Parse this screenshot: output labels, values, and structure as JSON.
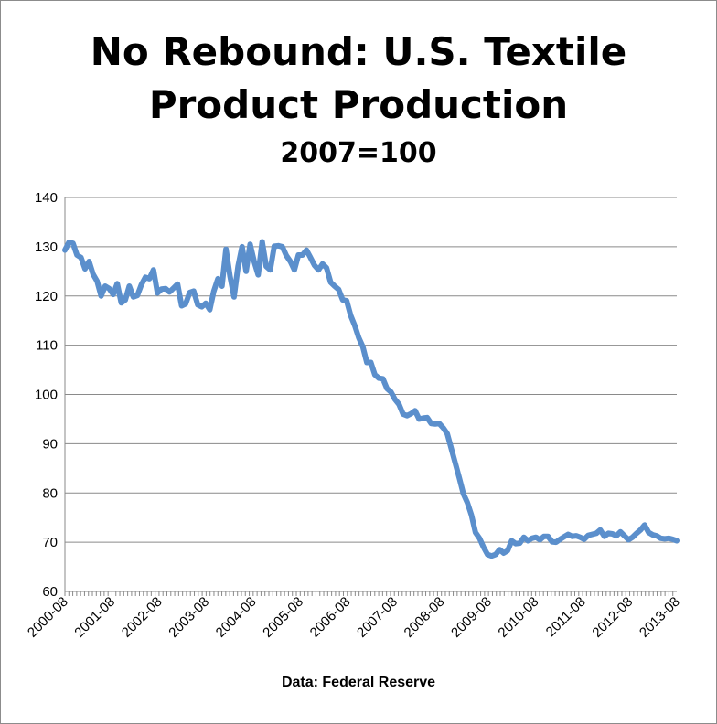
{
  "chart_data": {
    "type": "line",
    "title": "No Rebound: U.S. Textile Product Production",
    "title_lines": [
      "No Rebound: U.S. Textile",
      "Product Production"
    ],
    "subtitle": "2007=100",
    "source": "Data: Federal Reserve",
    "xlabel": "",
    "ylabel": "",
    "ylim": [
      60,
      140
    ],
    "yticks": [
      60,
      70,
      80,
      90,
      100,
      110,
      120,
      130,
      140
    ],
    "xticks": [
      "2000-08",
      "2001-08",
      "2002-08",
      "2003-08",
      "2004-08",
      "2005-08",
      "2006-08",
      "2007-08",
      "2008-08",
      "2009-08",
      "2010-08",
      "2011-08",
      "2012-08",
      "2013-08"
    ],
    "grid": true,
    "legend": "none",
    "line_color": "#5b8fcc",
    "series": [
      {
        "values": [
          129.3,
          130.9,
          130.7,
          128.3,
          127.8,
          125.5,
          127.0,
          124.4,
          123.0,
          120.0,
          122.0,
          121.5,
          120.3,
          122.5,
          118.6,
          119.2,
          122.0,
          119.8,
          120.1,
          122.3,
          123.8,
          123.5,
          125.3,
          120.6,
          121.4,
          121.5,
          120.8,
          121.6,
          122.4,
          118.0,
          118.4,
          120.7,
          121.0,
          118.2,
          117.8,
          118.5,
          117.2,
          121.0,
          123.5,
          122.0,
          129.5,
          124.0,
          119.8,
          126.0,
          130.0,
          125.0,
          130.5,
          127.0,
          124.3,
          131.0,
          126.0,
          125.3,
          130.1,
          130.2,
          130.0,
          128.2,
          127.0,
          125.3,
          128.3,
          128.3,
          129.3,
          127.8,
          126.2,
          125.3,
          126.5,
          125.7,
          122.8,
          122.0,
          121.3,
          119.2,
          119.0,
          116.0,
          114.0,
          111.5,
          109.7,
          106.5,
          106.5,
          104.0,
          103.3,
          103.2,
          101.2,
          100.5,
          99.0,
          98.0,
          96.0,
          95.7,
          96.1,
          96.7,
          95.0,
          95.2,
          95.3,
          94.1,
          94.0,
          94.1,
          93.2,
          92.0,
          89.0,
          86.0,
          83.0,
          79.8,
          78.0,
          75.5,
          72.0,
          70.8,
          69.0,
          67.5,
          67.2,
          67.5,
          68.5,
          67.8,
          68.3,
          70.3,
          69.7,
          69.8,
          71.0,
          70.3,
          70.8,
          71.0,
          70.5,
          71.2,
          71.2,
          70.1,
          70.0,
          70.6,
          71.1,
          71.6,
          71.2,
          71.3,
          71.0,
          70.6,
          71.4,
          71.6,
          71.8,
          72.5,
          71.2,
          71.8,
          71.7,
          71.3,
          72.1,
          71.3,
          70.5,
          71.0,
          71.8,
          72.5,
          73.5,
          72.0,
          71.5,
          71.3,
          70.8,
          70.7,
          70.8,
          70.6,
          70.3
        ]
      }
    ]
  }
}
